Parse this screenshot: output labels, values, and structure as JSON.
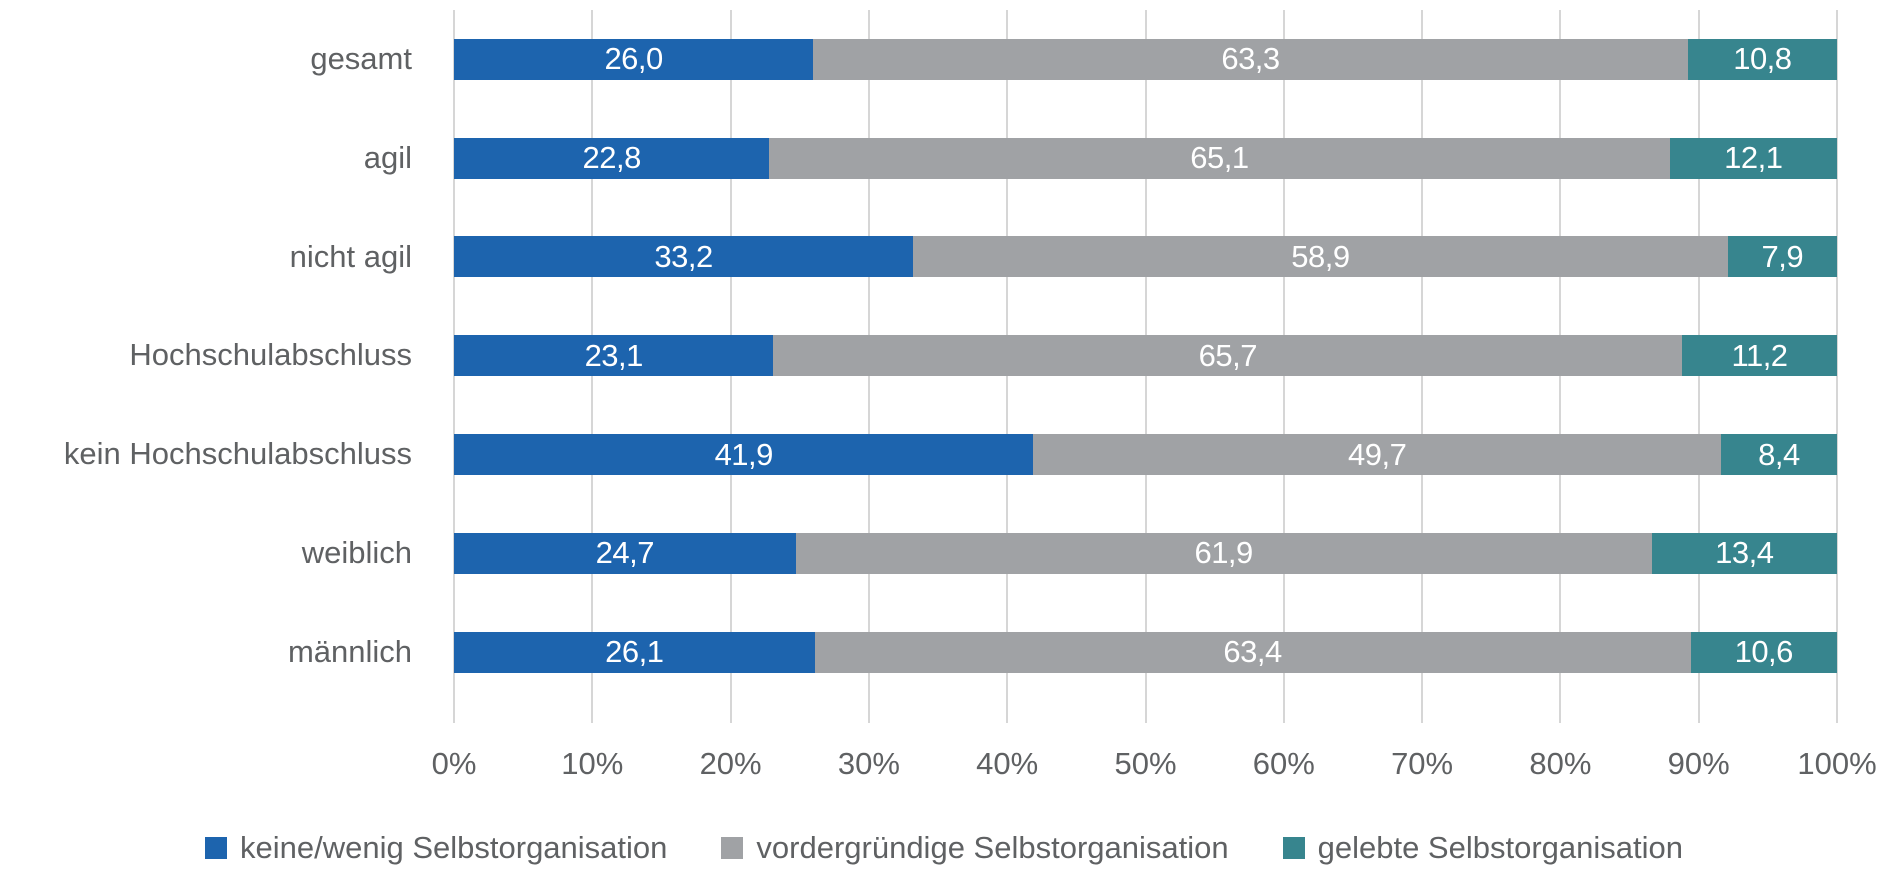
{
  "chart_data": {
    "type": "bar",
    "orientation": "horizontal",
    "stacked": true,
    "title": "",
    "categories": [
      "gesamt",
      "agil",
      "nicht agil",
      "Hochschulabschluss",
      "kein Hochschulabschluss",
      "weiblich",
      "männlich"
    ],
    "series": [
      {
        "name": "keine/wenig Selbstorganisation",
        "color": "#1d64ae",
        "values": [
          26.0,
          22.8,
          33.2,
          23.1,
          41.9,
          24.7,
          26.1
        ],
        "labels": [
          "26,0",
          "22,8",
          "33,2",
          "23,1",
          "41,9",
          "24,7",
          "26,1"
        ]
      },
      {
        "name": "vordergründige Selbstorganisation",
        "color": "#a0a2a5",
        "values": [
          63.3,
          65.1,
          58.9,
          65.7,
          49.7,
          61.9,
          63.4
        ],
        "labels": [
          "63,3",
          "65,1",
          "58,9",
          "65,7",
          "49,7",
          "61,9",
          "63,4"
        ]
      },
      {
        "name": "gelebte Selbstorganisation",
        "color": "#37858e",
        "values": [
          10.8,
          12.1,
          7.9,
          11.2,
          8.4,
          13.4,
          10.6
        ],
        "labels": [
          "10,8",
          "12,1",
          "7,9",
          "11,2",
          "8,4",
          "13,4",
          "10,6"
        ]
      }
    ],
    "x_axis": {
      "min": 0,
      "max": 100,
      "tick_labels": [
        "0%",
        "10%",
        "20%",
        "30%",
        "40%",
        "50%",
        "60%",
        "70%",
        "80%",
        "90%",
        "100%"
      ]
    },
    "grid": true,
    "legend_position": "bottom",
    "value_label_color": "#ffffff",
    "axis_text_color": "#5f6163",
    "gridline_color": "#d6d6d6"
  }
}
